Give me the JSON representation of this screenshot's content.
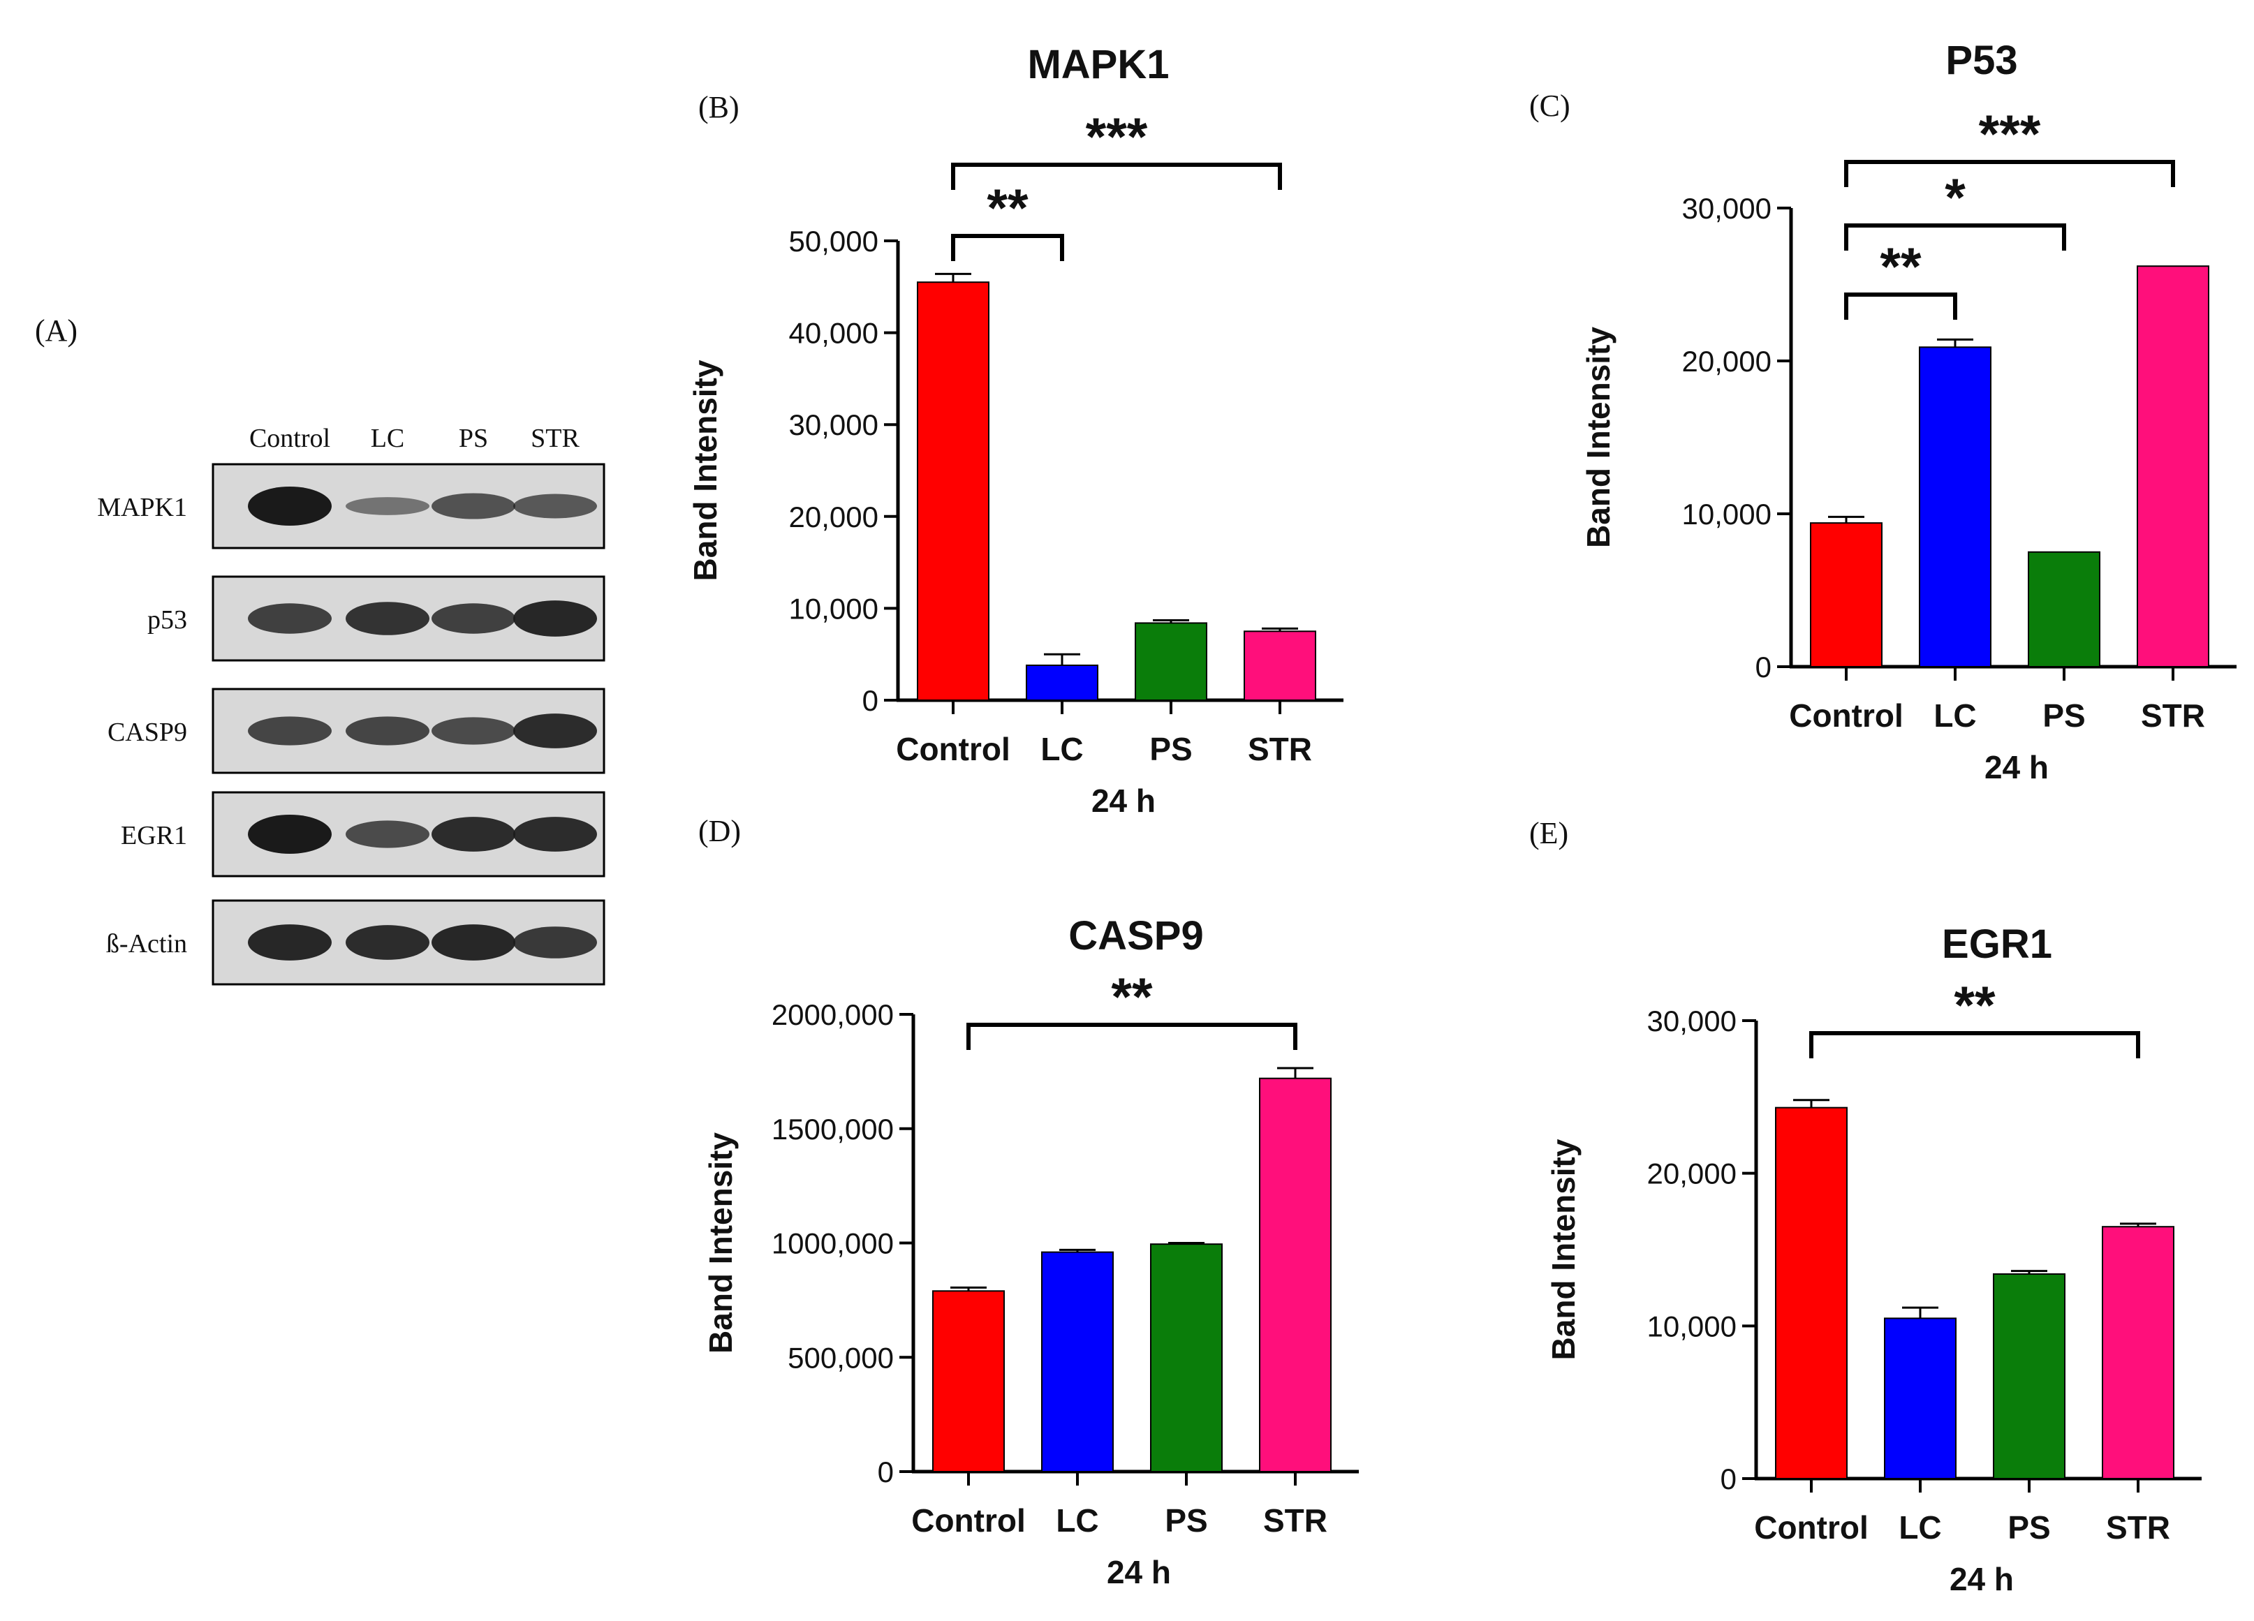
{
  "colors": {
    "control": "#ff0000",
    "lc": "#0000ff",
    "ps": "#0a7d0a",
    "str": "#ff0f7b",
    "ink": "#111111",
    "blot_bg": "#d8d8d8",
    "band": "#1a1a1a"
  },
  "western_blot": {
    "panel_label": "(A)",
    "lanes": [
      "Control",
      "LC",
      "PS",
      "STR"
    ],
    "rows": [
      {
        "label": "MAPK1",
        "intensities": [
          1.0,
          0.28,
          0.55,
          0.5
        ]
      },
      {
        "label": "p53",
        "intensities": [
          0.7,
          0.8,
          0.7,
          0.9
        ]
      },
      {
        "label": "CASP9",
        "intensities": [
          0.65,
          0.65,
          0.6,
          0.85
        ]
      },
      {
        "label": "EGR1",
        "intensities": [
          1.0,
          0.6,
          0.85,
          0.85
        ]
      },
      {
        "label": "ß-Actin",
        "intensities": [
          0.9,
          0.85,
          0.9,
          0.75
        ]
      }
    ]
  },
  "chart_data": [
    {
      "panel_label": "(B)",
      "type": "bar",
      "title": "MAPK1",
      "xlabel": "24 h",
      "ylabel": "Band Intensity",
      "categories": [
        "Control",
        "LC",
        "PS",
        "STR"
      ],
      "values": [
        45500,
        3800,
        8400,
        7500
      ],
      "errors": [
        900,
        1200,
        300,
        300
      ],
      "ylim": [
        0,
        50000
      ],
      "yticks": [
        0,
        10000,
        20000,
        30000,
        40000,
        50000
      ],
      "ytick_labels": [
        "0",
        "10,000",
        "20,000",
        "30,000",
        "40,000",
        "50,000"
      ],
      "significance": [
        {
          "from": 0,
          "to": 1,
          "label": "**"
        },
        {
          "from": 0,
          "to": 3,
          "label": "***"
        }
      ]
    },
    {
      "panel_label": "(C)",
      "type": "bar",
      "title": "P53",
      "xlabel": "24 h",
      "ylabel": "Band Intensity",
      "categories": [
        "Control",
        "LC",
        "PS",
        "STR"
      ],
      "values": [
        9400,
        20900,
        7500,
        26200
      ],
      "errors": [
        400,
        500,
        0,
        0
      ],
      "ylim": [
        0,
        30000
      ],
      "yticks": [
        0,
        10000,
        20000,
        30000
      ],
      "ytick_labels": [
        "0",
        "10,000",
        "20,000",
        "30,000"
      ],
      "significance": [
        {
          "from": 0,
          "to": 1,
          "label": "**"
        },
        {
          "from": 0,
          "to": 2,
          "label": "*"
        },
        {
          "from": 0,
          "to": 3,
          "label": "***"
        }
      ]
    },
    {
      "panel_label": "(D)",
      "type": "bar",
      "title": "CASP9",
      "xlabel": "24 h",
      "ylabel": "Band Intensity",
      "categories": [
        "Control",
        "LC",
        "PS",
        "STR"
      ],
      "values": [
        790000,
        960000,
        995000,
        1720000
      ],
      "errors": [
        15000,
        10000,
        5000,
        45000
      ],
      "ylim": [
        0,
        2000000
      ],
      "yticks": [
        0,
        500000,
        1000000,
        1500000,
        2000000
      ],
      "ytick_labels": [
        "0",
        "500,000",
        "1000,000",
        "1500,000",
        "2000,000"
      ],
      "significance": [
        {
          "from": 0,
          "to": 3,
          "label": "**"
        }
      ]
    },
    {
      "panel_label": "(E)",
      "type": "bar",
      "title": "EGR1",
      "xlabel": "24 h",
      "ylabel": "Band Intensity",
      "categories": [
        "Control",
        "LC",
        "PS",
        "STR"
      ],
      "values": [
        24300,
        10500,
        13400,
        16500
      ],
      "errors": [
        500,
        700,
        200,
        200
      ],
      "ylim": [
        0,
        30000
      ],
      "yticks": [
        0,
        10000,
        20000,
        30000
      ],
      "ytick_labels": [
        "0",
        "10,000",
        "20,000",
        "30,000"
      ],
      "significance": [
        {
          "from": 0,
          "to": 3,
          "label": "**"
        }
      ]
    }
  ]
}
